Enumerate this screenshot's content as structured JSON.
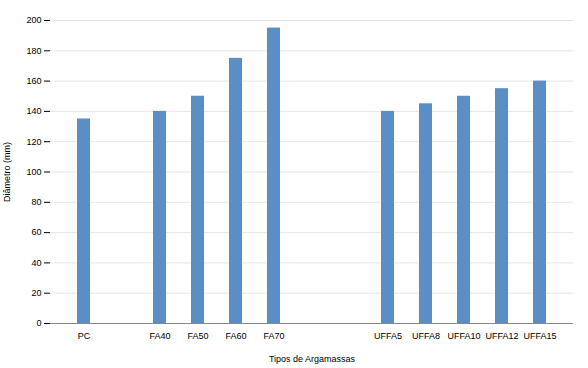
{
  "chart_data": {
    "type": "bar",
    "categories": [
      "PC",
      null,
      "FA40",
      "FA50",
      "FA60",
      "FA70",
      null,
      null,
      "UFFA5",
      "UFFA8",
      "UFFA10",
      "UFFA12",
      "UFFA15"
    ],
    "values": [
      135,
      null,
      140,
      150,
      175,
      195,
      null,
      null,
      140,
      145,
      150,
      155,
      160
    ],
    "color": "#5b8ec4",
    "xlabel": "Tipos de Argamassas",
    "ylabel": "Diâmetro (mm)",
    "ylim": [
      0,
      200
    ],
    "yticks": [
      0,
      20,
      40,
      60,
      80,
      100,
      120,
      140,
      160,
      180,
      200
    ],
    "grid": true
  }
}
